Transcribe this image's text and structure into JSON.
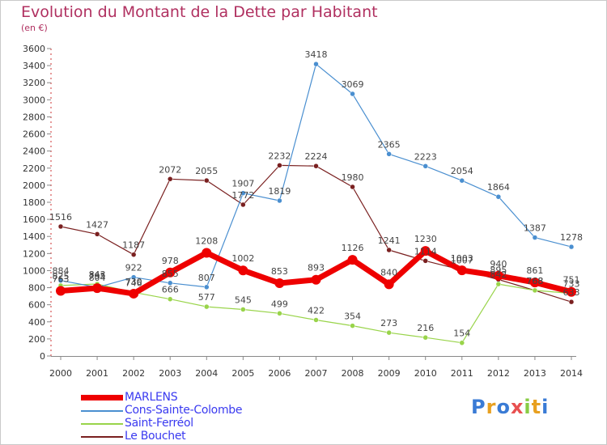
{
  "header": {
    "title": "Evolution du Montant de la Dette par Habitant",
    "subtitle": "(en €)"
  },
  "brand": {
    "letters": [
      {
        "ch": "P",
        "color": "#3a7bd5"
      },
      {
        "ch": "r",
        "color": "#e8a020"
      },
      {
        "ch": "o",
        "color": "#3a7bd5"
      },
      {
        "ch": "x",
        "color": "#e85050"
      },
      {
        "ch": "i",
        "color": "#88cc44"
      },
      {
        "ch": "t",
        "color": "#e8a020"
      },
      {
        "ch": "i",
        "color": "#3a7bd5"
      }
    ]
  },
  "chart_data": {
    "type": "line",
    "title": "Evolution du Montant de la Dette par Habitant",
    "ylabel": "(en €)",
    "x": [
      2000,
      2001,
      2002,
      2003,
      2004,
      2005,
      2006,
      2007,
      2008,
      2009,
      2010,
      2011,
      2012,
      2013,
      2014
    ],
    "ylim": [
      0,
      3600
    ],
    "yticks": [
      0,
      200,
      400,
      600,
      800,
      1000,
      1200,
      1400,
      1600,
      1800,
      2000,
      2200,
      2400,
      2600,
      2800,
      3000,
      3200,
      3400,
      3600
    ],
    "grid": false,
    "legend_position": "bottom-left",
    "series": [
      {
        "name": "MARLENS",
        "color": "#ee0000",
        "emphasis": true,
        "values": [
          763,
          795,
          730,
          978,
          1208,
          1002,
          853,
          893,
          1126,
          840,
          1230,
          1003,
          940,
          861,
          751
        ],
        "labels": [
          "763",
          "795",
          "730",
          "978",
          "1208",
          "1002",
          "853",
          "893",
          "1126",
          "840",
          "1230",
          "1003",
          "940",
          "861",
          "751"
        ]
      },
      {
        "name": "Cons-Sainte-Colombe",
        "color": "#4a8fd0",
        "values": [
          884,
          804,
          922,
          855,
          807,
          1907,
          1819,
          3418,
          3069,
          2365,
          2223,
          2054,
          1864,
          1387,
          1278
        ],
        "labels": [
          "884",
          "804",
          "922",
          "855",
          "807",
          "1907",
          "1819",
          "3418",
          "3069",
          "2365",
          "2223",
          "2054",
          "1864",
          "1387",
          "1278"
        ]
      },
      {
        "name": "Saint-Ferréol",
        "color": "#99d44a",
        "values": [
          825,
          843,
          746,
          666,
          577,
          545,
          499,
          422,
          354,
          273,
          216,
          154,
          842,
          768,
          733
        ],
        "labels": [
          "825",
          "843",
          "746",
          "666",
          "577",
          "545",
          "499",
          "422",
          "354",
          "273",
          "216",
          "154",
          "842",
          "768",
          "733"
        ]
      },
      {
        "name": "Le Bouchet",
        "color": "#7a2020",
        "values": [
          1516,
          1427,
          1187,
          2072,
          2055,
          1772,
          2232,
          2224,
          1980,
          1241,
          1114,
          1007,
          895,
          768,
          633
        ],
        "labels": [
          "1516",
          "1427",
          "1187",
          "2072",
          "2055",
          "1772",
          "2232",
          "2224",
          "1980",
          "1241",
          "1114",
          "1007",
          "895",
          "768",
          "633"
        ]
      }
    ]
  }
}
